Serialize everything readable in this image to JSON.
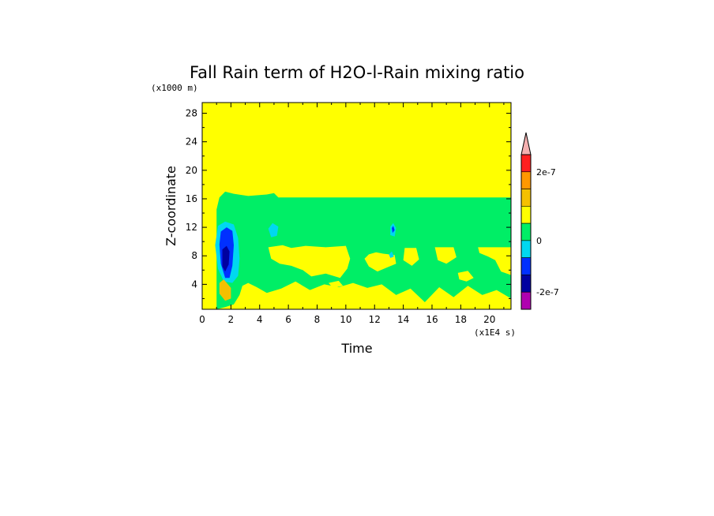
{
  "chart_data": {
    "type": "heatmap",
    "title": "Fall Rain term of H2O-l-Rain mixing ratio",
    "xlabel": "Time",
    "ylabel": "Z-coordinate",
    "x_unit": "(x1E4 s)",
    "y_unit": "(x1000 m)",
    "xlim": [
      0,
      21.5
    ],
    "ylim": [
      0.5,
      29.5
    ],
    "x_ticks": [
      0,
      2,
      4,
      6,
      8,
      10,
      12,
      14,
      16,
      18,
      20
    ],
    "y_ticks": [
      4,
      8,
      12,
      16,
      20,
      24,
      28
    ],
    "background_value": 5e-08,
    "regions": [
      {
        "level": 0,
        "points": [
          [
            1,
            0.5
          ],
          [
            1,
            14.5
          ],
          [
            1.2,
            16.2
          ],
          [
            1.6,
            17
          ],
          [
            2.2,
            16.7
          ],
          [
            3.2,
            16.4
          ],
          [
            4.5,
            16.6
          ],
          [
            5,
            16.8
          ],
          [
            5.3,
            16.2
          ],
          [
            21.5,
            16.2
          ],
          [
            21.5,
            2
          ],
          [
            20.5,
            3.2
          ],
          [
            19.5,
            2.5
          ],
          [
            18.5,
            3.8
          ],
          [
            17.5,
            2.2
          ],
          [
            16.5,
            3.6
          ],
          [
            15.5,
            1.5
          ],
          [
            14.5,
            3.4
          ],
          [
            13.5,
            2.5
          ],
          [
            12.5,
            4
          ],
          [
            11.5,
            3.5
          ],
          [
            10.5,
            4.2
          ],
          [
            9.5,
            3.6
          ],
          [
            8.5,
            4
          ],
          [
            7.5,
            3.2
          ],
          [
            6.5,
            4.4
          ],
          [
            5.5,
            3.4
          ],
          [
            4.5,
            2.8
          ],
          [
            3.8,
            3.6
          ],
          [
            3.2,
            4.2
          ],
          [
            2.8,
            3.8
          ],
          [
            2.6,
            2.5
          ],
          [
            2.2,
            1.2
          ],
          [
            1.6,
            0.8
          ]
        ]
      },
      {
        "level": 1,
        "points": [
          [
            4.6,
            9.2
          ],
          [
            5.6,
            9.5
          ],
          [
            6.2,
            9.1
          ],
          [
            7.2,
            9.4
          ],
          [
            8.6,
            9.2
          ],
          [
            10,
            9.4
          ],
          [
            10.3,
            7.6
          ],
          [
            10.1,
            6.2
          ],
          [
            9.6,
            4.9
          ],
          [
            8.6,
            5.5
          ],
          [
            7.6,
            5.1
          ],
          [
            7,
            6
          ],
          [
            6.2,
            6.6
          ],
          [
            5.4,
            6.9
          ],
          [
            4.8,
            7.6
          ]
        ]
      },
      {
        "level": 1,
        "points": [
          [
            11.3,
            7.6
          ],
          [
            11.6,
            6.5
          ],
          [
            12.2,
            5.8
          ],
          [
            12.9,
            6.4
          ],
          [
            13.5,
            6.9
          ],
          [
            13.4,
            8.1
          ],
          [
            12.6,
            8.3
          ],
          [
            12.1,
            8.5
          ],
          [
            11.6,
            8.2
          ]
        ]
      },
      {
        "level": 1,
        "points": [
          [
            14.1,
            9.1
          ],
          [
            14.9,
            9.1
          ],
          [
            15.1,
            7.5
          ],
          [
            14.6,
            6.6
          ],
          [
            14,
            7.4
          ]
        ]
      },
      {
        "level": 1,
        "points": [
          [
            16.2,
            9.2
          ],
          [
            17.5,
            9.2
          ],
          [
            17.7,
            7.8
          ],
          [
            17,
            6.9
          ],
          [
            16.4,
            7.4
          ]
        ]
      },
      {
        "level": 1,
        "points": [
          [
            19.2,
            9.2
          ],
          [
            21.5,
            9.2
          ],
          [
            21.5,
            5.3
          ],
          [
            20.8,
            5.8
          ],
          [
            20.4,
            7.4
          ],
          [
            19.9,
            7.9
          ],
          [
            19.3,
            8.4
          ]
        ]
      },
      {
        "level": 1,
        "points": [
          [
            17.8,
            5.6
          ],
          [
            18.5,
            5.9
          ],
          [
            18.9,
            4.9
          ],
          [
            18.4,
            4.4
          ],
          [
            17.9,
            4.7
          ]
        ]
      },
      {
        "level": 1,
        "points": [
          [
            8.8,
            4.2
          ],
          [
            9.5,
            4.5
          ],
          [
            9.8,
            3.8
          ],
          [
            9.1,
            3.5
          ]
        ]
      },
      {
        "level": -1,
        "points": [
          [
            1.1,
            12.2
          ],
          [
            1.6,
            12.8
          ],
          [
            2.2,
            12.4
          ],
          [
            2.5,
            10.5
          ],
          [
            2.6,
            7.6
          ],
          [
            2.5,
            5.2
          ],
          [
            2.1,
            4.2
          ],
          [
            1.5,
            4.4
          ],
          [
            1.1,
            6.2
          ],
          [
            0.9,
            9.5
          ]
        ]
      },
      {
        "level": -2,
        "points": [
          [
            1.3,
            11.4
          ],
          [
            1.7,
            12
          ],
          [
            2.1,
            11.5
          ],
          [
            2.2,
            9.5
          ],
          [
            2.1,
            6.6
          ],
          [
            1.9,
            4.9
          ],
          [
            1.6,
            4.9
          ],
          [
            1.3,
            6.9
          ],
          [
            1.2,
            9.6
          ]
        ]
      },
      {
        "level": -3,
        "points": [
          [
            1.4,
            8.9
          ],
          [
            1.7,
            9.4
          ],
          [
            1.9,
            8.6
          ],
          [
            1.85,
            6.8
          ],
          [
            1.6,
            5.8
          ],
          [
            1.4,
            6.5
          ]
        ]
      },
      {
        "level": -1,
        "points": [
          [
            4.6,
            11.8
          ],
          [
            4.9,
            12.6
          ],
          [
            5.3,
            12.1
          ],
          [
            5.2,
            10.8
          ],
          [
            4.8,
            10.6
          ]
        ]
      },
      {
        "level": -1,
        "points": [
          [
            13.1,
            12.1
          ],
          [
            13.3,
            12.6
          ],
          [
            13.5,
            11.9
          ],
          [
            13.4,
            10.7
          ],
          [
            13.1,
            10.9
          ]
        ]
      },
      {
        "level": -2,
        "points": [
          [
            13.2,
            11.9
          ],
          [
            13.3,
            12.2
          ],
          [
            13.4,
            11.6
          ],
          [
            13.25,
            11.2
          ]
        ]
      },
      {
        "level": -1,
        "points": [
          [
            13,
            8.2
          ],
          [
            13.2,
            8.6
          ],
          [
            13.35,
            7.9
          ],
          [
            13.1,
            7.7
          ]
        ]
      },
      {
        "level": 2,
        "points": [
          [
            1.2,
            4.2
          ],
          [
            1.5,
            4.7
          ],
          [
            2,
            3.5
          ],
          [
            2,
            2
          ],
          [
            1.6,
            1.7
          ],
          [
            1.2,
            2.7
          ]
        ]
      }
    ],
    "colorbar": {
      "levels": [
        {
          "level": -4,
          "color": "#b000b0"
        },
        {
          "level": -3,
          "color": "#0000a0"
        },
        {
          "level": -2,
          "color": "#0030ff"
        },
        {
          "level": -1,
          "color": "#00d8f0"
        },
        {
          "level": 0,
          "color": "#00ee66"
        },
        {
          "level": 1,
          "color": "#ffff00"
        },
        {
          "level": 2,
          "color": "#f4c000"
        },
        {
          "level": 3,
          "color": "#ff9800"
        },
        {
          "level": 4,
          "color": "#ff2020"
        }
      ],
      "overflow_color": "#f4b0b0",
      "tick_labels": [
        {
          "after_level": 4,
          "label": "2e-7"
        },
        {
          "after_level": 0,
          "label": "0"
        },
        {
          "after_level": -3,
          "label": "-2e-7"
        }
      ]
    }
  }
}
